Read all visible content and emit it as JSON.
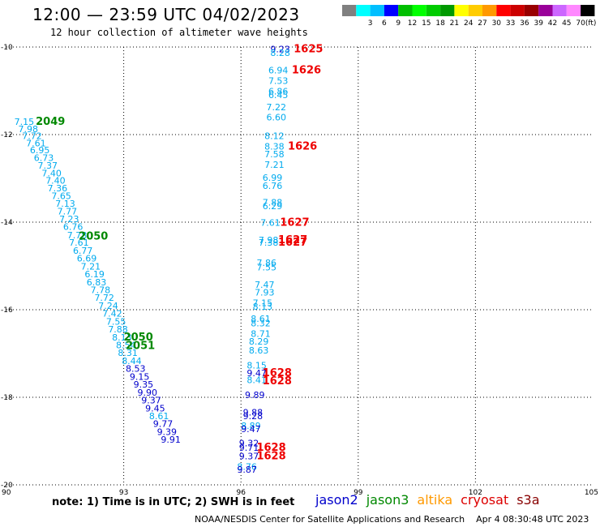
{
  "header": {
    "title": "12:00 — 23:59 UTC 04/02/2023",
    "subtitle": "12 hour collection of altimeter wave heights"
  },
  "colorbar": {
    "unit_label": "(ft)",
    "bins": [
      {
        "color": "#808080",
        "label": ""
      },
      {
        "color": "#00ffff",
        "label": "3"
      },
      {
        "color": "#00bfff",
        "label": "6"
      },
      {
        "color": "#0000ff",
        "label": "9"
      },
      {
        "color": "#00bf00",
        "label": "12"
      },
      {
        "color": "#00ff00",
        "label": "15"
      },
      {
        "color": "#00cc00",
        "label": "18"
      },
      {
        "color": "#009900",
        "label": "21"
      },
      {
        "color": "#ffff00",
        "label": "24"
      },
      {
        "color": "#ffcc00",
        "label": "27"
      },
      {
        "color": "#ff9900",
        "label": "30"
      },
      {
        "color": "#ff0000",
        "label": "33"
      },
      {
        "color": "#cc0000",
        "label": "36"
      },
      {
        "color": "#990000",
        "label": "39"
      },
      {
        "color": "#990099",
        "label": "42"
      },
      {
        "color": "#cc66ff",
        "label": "45"
      },
      {
        "color": "#ff88ff",
        "label": "70"
      },
      {
        "color": "#000000",
        "label": ""
      }
    ]
  },
  "footer": {
    "note": "note:  1) Time is in UTC;  2) SWH is in feet",
    "satellites": [
      {
        "name": "jason2",
        "color": "#0000cc"
      },
      {
        "name": "jason3",
        "color": "#008800"
      },
      {
        "name": "altika",
        "color": "#ff9900"
      },
      {
        "name": "cryosat",
        "color": "#dd0000"
      },
      {
        "name": "s3a",
        "color": "#880000"
      }
    ],
    "credit": "NOAA/NESDIS Center for Satellite Applications and Research",
    "timestamp": "Apr  4 08:30:48 UTC 2023"
  },
  "chart_data": {
    "type": "scatter",
    "x_ticks": [
      "90",
      "93",
      "96",
      "99",
      "102",
      "105"
    ],
    "y_ticks": [
      "-10",
      "-12",
      "-14",
      "-16",
      "-18",
      "-20"
    ],
    "xlim": [
      90,
      105
    ],
    "ylim": [
      -20,
      -10
    ],
    "grid": true,
    "colors": {
      "light": "#00aaee",
      "dark": "#0000cc",
      "time_green": "#008800",
      "time_red": "#ee0000"
    },
    "swh_labels": [
      {
        "x": 90.2,
        "y": -11.78,
        "t": "7.15",
        "c": "light"
      },
      {
        "x": 90.3,
        "y": -11.94,
        "t": "7.98",
        "c": "light"
      },
      {
        "x": 90.4,
        "y": -12.1,
        "t": "7.72",
        "c": "light"
      },
      {
        "x": 90.5,
        "y": -12.27,
        "t": "7.61",
        "c": "light"
      },
      {
        "x": 90.6,
        "y": -12.43,
        "t": "6.95",
        "c": "light"
      },
      {
        "x": 90.7,
        "y": -12.6,
        "t": "6.73",
        "c": "light"
      },
      {
        "x": 90.8,
        "y": -12.78,
        "t": "7.37",
        "c": "light"
      },
      {
        "x": 90.9,
        "y": -12.95,
        "t": "7.40",
        "c": "light"
      },
      {
        "x": 91.0,
        "y": -13.12,
        "t": "7.40",
        "c": "light"
      },
      {
        "x": 91.05,
        "y": -13.3,
        "t": "7.36",
        "c": "light"
      },
      {
        "x": 91.15,
        "y": -13.47,
        "t": "7.65",
        "c": "light"
      },
      {
        "x": 91.25,
        "y": -13.65,
        "t": "7.13",
        "c": "light"
      },
      {
        "x": 91.3,
        "y": -13.82,
        "t": "7.77",
        "c": "light"
      },
      {
        "x": 91.35,
        "y": -14.0,
        "t": "7.23",
        "c": "light"
      },
      {
        "x": 91.45,
        "y": -14.18,
        "t": "6.76",
        "c": "light"
      },
      {
        "x": 91.55,
        "y": -14.37,
        "t": "7.78",
        "c": "light"
      },
      {
        "x": 91.6,
        "y": -14.54,
        "t": "7.61",
        "c": "light"
      },
      {
        "x": 91.7,
        "y": -14.72,
        "t": "6.77",
        "c": "light"
      },
      {
        "x": 91.8,
        "y": -14.9,
        "t": "6.69",
        "c": "light"
      },
      {
        "x": 91.9,
        "y": -15.08,
        "t": "7.21",
        "c": "light"
      },
      {
        "x": 92.0,
        "y": -15.26,
        "t": "6.19",
        "c": "light"
      },
      {
        "x": 92.05,
        "y": -15.44,
        "t": "6.83",
        "c": "light"
      },
      {
        "x": 92.15,
        "y": -15.62,
        "t": "7.78",
        "c": "light"
      },
      {
        "x": 92.25,
        "y": -15.8,
        "t": "7.72",
        "c": "light"
      },
      {
        "x": 92.35,
        "y": -15.98,
        "t": "7.24",
        "c": "light"
      },
      {
        "x": 92.45,
        "y": -16.16,
        "t": "7.42",
        "c": "light"
      },
      {
        "x": 92.55,
        "y": -16.34,
        "t": "7.55",
        "c": "light"
      },
      {
        "x": 92.6,
        "y": -16.52,
        "t": "7.88",
        "c": "light"
      },
      {
        "x": 92.7,
        "y": -16.7,
        "t": "8.13",
        "c": "light"
      },
      {
        "x": 92.8,
        "y": -16.88,
        "t": "8.54",
        "c": "light"
      },
      {
        "x": 92.85,
        "y": -17.06,
        "t": "8.31",
        "c": "light"
      },
      {
        "x": 92.95,
        "y": -17.24,
        "t": "8.44",
        "c": "light"
      },
      {
        "x": 93.05,
        "y": -17.42,
        "t": "8.53",
        "c": "dark"
      },
      {
        "x": 93.15,
        "y": -17.6,
        "t": "9.15",
        "c": "dark"
      },
      {
        "x": 93.25,
        "y": -17.78,
        "t": "9.35",
        "c": "dark"
      },
      {
        "x": 93.35,
        "y": -17.96,
        "t": "9.90",
        "c": "dark"
      },
      {
        "x": 93.45,
        "y": -18.14,
        "t": "9.37",
        "c": "dark"
      },
      {
        "x": 93.55,
        "y": -18.32,
        "t": "9.45",
        "c": "dark"
      },
      {
        "x": 93.65,
        "y": -18.5,
        "t": "8.61",
        "c": "light"
      },
      {
        "x": 93.75,
        "y": -18.68,
        "t": "9.77",
        "c": "dark"
      },
      {
        "x": 93.85,
        "y": -18.86,
        "t": "9.39",
        "c": "dark"
      },
      {
        "x": 93.95,
        "y": -19.04,
        "t": "9.91",
        "c": "dark"
      },
      {
        "x": 96.75,
        "y": -10.12,
        "t": "9.23",
        "c": "dark"
      },
      {
        "x": 96.75,
        "y": -10.2,
        "t": "8.28",
        "c": "light"
      },
      {
        "x": 96.7,
        "y": -10.6,
        "t": "6.94",
        "c": "light"
      },
      {
        "x": 96.7,
        "y": -10.84,
        "t": "7.53",
        "c": "light"
      },
      {
        "x": 96.7,
        "y": -11.08,
        "t": "6.86",
        "c": "light"
      },
      {
        "x": 96.7,
        "y": -11.17,
        "t": "6.45",
        "c": "light"
      },
      {
        "x": 96.65,
        "y": -11.44,
        "t": "7.22",
        "c": "light"
      },
      {
        "x": 96.65,
        "y": -11.68,
        "t": "6.60",
        "c": "light"
      },
      {
        "x": 96.6,
        "y": -12.1,
        "t": "8.12",
        "c": "light"
      },
      {
        "x": 96.6,
        "y": -12.34,
        "t": "8.38",
        "c": "light"
      },
      {
        "x": 96.6,
        "y": -12.52,
        "t": "7.58",
        "c": "light"
      },
      {
        "x": 96.6,
        "y": -12.76,
        "t": "7.21",
        "c": "light"
      },
      {
        "x": 96.55,
        "y": -13.06,
        "t": "6.99",
        "c": "light"
      },
      {
        "x": 96.55,
        "y": -13.24,
        "t": "6.76",
        "c": "light"
      },
      {
        "x": 96.55,
        "y": -13.62,
        "t": "7.88",
        "c": "light"
      },
      {
        "x": 96.55,
        "y": -13.7,
        "t": "6.29",
        "c": "light"
      },
      {
        "x": 96.5,
        "y": -14.08,
        "t": "7.61",
        "c": "light"
      },
      {
        "x": 96.45,
        "y": -14.48,
        "t": "7.98",
        "c": "light"
      },
      {
        "x": 96.45,
        "y": -14.54,
        "t": "7.38",
        "c": "light"
      },
      {
        "x": 96.4,
        "y": -15.0,
        "t": "7.86",
        "c": "light"
      },
      {
        "x": 96.4,
        "y": -15.1,
        "t": "7.55",
        "c": "light"
      },
      {
        "x": 96.35,
        "y": -15.5,
        "t": "7.47",
        "c": "light"
      },
      {
        "x": 96.35,
        "y": -15.68,
        "t": "7.93",
        "c": "light"
      },
      {
        "x": 96.3,
        "y": -15.92,
        "t": "7.15",
        "c": "light"
      },
      {
        "x": 96.3,
        "y": -16.0,
        "t": "8.13",
        "c": "light"
      },
      {
        "x": 96.25,
        "y": -16.28,
        "t": "8.61",
        "c": "light"
      },
      {
        "x": 96.25,
        "y": -16.38,
        "t": "8.32",
        "c": "light"
      },
      {
        "x": 96.25,
        "y": -16.62,
        "t": "8.71",
        "c": "light"
      },
      {
        "x": 96.2,
        "y": -16.8,
        "t": "8.29",
        "c": "light"
      },
      {
        "x": 96.2,
        "y": -17.0,
        "t": "8.63",
        "c": "light"
      },
      {
        "x": 96.15,
        "y": -17.34,
        "t": "8.15",
        "c": "light"
      },
      {
        "x": 96.15,
        "y": -17.52,
        "t": "9.47",
        "c": "dark"
      },
      {
        "x": 96.15,
        "y": -17.68,
        "t": "8.41",
        "c": "light"
      },
      {
        "x": 96.1,
        "y": -18.02,
        "t": "9.89",
        "c": "dark"
      },
      {
        "x": 96.05,
        "y": -18.42,
        "t": "9.88",
        "c": "dark"
      },
      {
        "x": 96.05,
        "y": -18.5,
        "t": "9.28",
        "c": "dark"
      },
      {
        "x": 96.0,
        "y": -18.72,
        "t": "8.89",
        "c": "light"
      },
      {
        "x": 96.0,
        "y": -18.8,
        "t": "9.47",
        "c": "dark"
      },
      {
        "x": 95.95,
        "y": -19.12,
        "t": "9.32",
        "c": "dark"
      },
      {
        "x": 95.95,
        "y": -19.22,
        "t": "9.71",
        "c": "dark"
      },
      {
        "x": 95.95,
        "y": -19.42,
        "t": "9.37",
        "c": "dark"
      },
      {
        "x": 95.9,
        "y": -19.66,
        "t": "8.76",
        "c": "light"
      },
      {
        "x": 95.9,
        "y": -19.72,
        "t": "9.87",
        "c": "dark"
      }
    ],
    "time_labels": [
      {
        "x": 90.75,
        "y": -11.78,
        "t": "2049",
        "c": "time_green"
      },
      {
        "x": 91.85,
        "y": -14.4,
        "t": "2050",
        "c": "time_green"
      },
      {
        "x": 93.0,
        "y": -16.7,
        "t": "2050",
        "c": "time_green"
      },
      {
        "x": 93.05,
        "y": -16.9,
        "t": "2051",
        "c": "time_green"
      },
      {
        "x": 97.35,
        "y": -10.12,
        "t": "1625",
        "c": "time_red"
      },
      {
        "x": 97.3,
        "y": -10.6,
        "t": "1626",
        "c": "time_red"
      },
      {
        "x": 97.2,
        "y": -12.34,
        "t": "1626",
        "c": "time_red"
      },
      {
        "x": 97.0,
        "y": -14.08,
        "t": "1627",
        "c": "time_red"
      },
      {
        "x": 96.95,
        "y": -14.48,
        "t": "1627",
        "c": "time_red"
      },
      {
        "x": 96.95,
        "y": -14.54,
        "t": "1627",
        "c": "time_red"
      },
      {
        "x": 96.55,
        "y": -17.52,
        "t": "1628",
        "c": "time_red"
      },
      {
        "x": 96.55,
        "y": -17.7,
        "t": "1628",
        "c": "time_red"
      },
      {
        "x": 96.4,
        "y": -19.22,
        "t": "1628",
        "c": "time_red"
      },
      {
        "x": 96.4,
        "y": -19.42,
        "t": "1628",
        "c": "time_red"
      }
    ]
  }
}
